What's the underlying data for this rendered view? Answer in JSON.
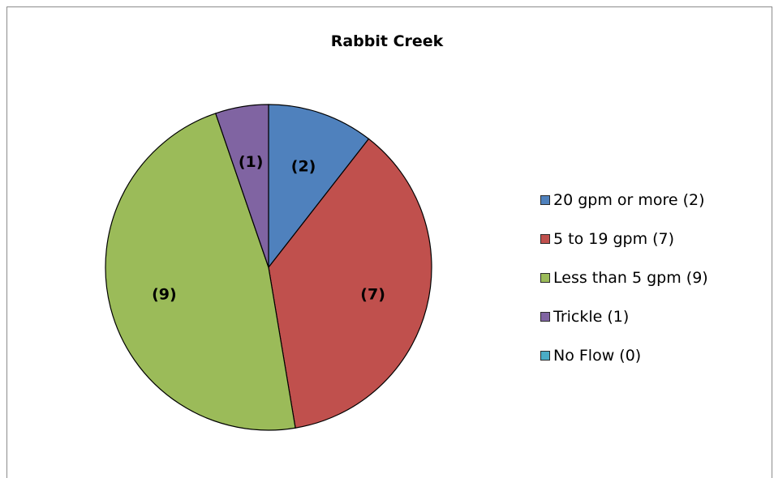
{
  "chart_data": {
    "type": "pie",
    "title": "Rabbit Creek",
    "slices": [
      {
        "name": "20 gpm or more (2)",
        "value": 2,
        "label": "(2)",
        "color": "#4f81bd"
      },
      {
        "name": "5 to 19 gpm (7)",
        "value": 7,
        "label": "(7)",
        "color": "#c0504d"
      },
      {
        "name": "Less than 5 gpm (9)",
        "value": 9,
        "label": "(9)",
        "color": "#9bbb59"
      },
      {
        "name": "Trickle (1)",
        "value": 1,
        "label": "(1)",
        "color": "#8064a2"
      },
      {
        "name": "No Flow (0)",
        "value": 0,
        "label": "",
        "color": "#4bacc6"
      }
    ],
    "legend_position": "right"
  }
}
